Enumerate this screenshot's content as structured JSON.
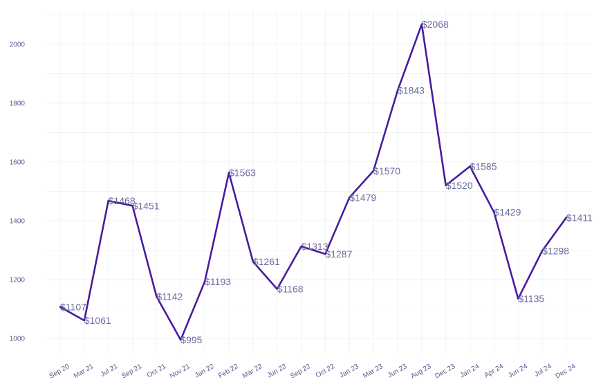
{
  "chart_data": {
    "type": "line",
    "title": "",
    "xlabel": "",
    "ylabel": "",
    "categories": [
      "Sep 20",
      "Mar 21",
      "Jul 21",
      "Sep 21",
      "Oct 21",
      "Nov 21",
      "Jan 22",
      "Feb 22",
      "Mar 22",
      "Jun 22",
      "Sep 22",
      "Oct 22",
      "Jan 23",
      "Mar 23",
      "Jun 23",
      "Aug 23",
      "Dec 23",
      "Jan 24",
      "Apr 24",
      "Jun 24",
      "Jul 24",
      "Dec 24"
    ],
    "values": [
      1107,
      1061,
      1468,
      1451,
      1142,
      995,
      1193,
      1563,
      1261,
      1168,
      1313,
      1287,
      1479,
      1570,
      1843,
      2068,
      1520,
      1585,
      1429,
      1135,
      1298,
      1411
    ],
    "data_labels": [
      "$1107",
      "$1061",
      "$1468",
      "$1451",
      "$1142",
      "$995",
      "$1193",
      "$1563",
      "$1261",
      "$1168",
      "$1313",
      "$1287",
      "$1479",
      "$1570",
      "$1843",
      "$2068",
      "$1520",
      "$1585",
      "$1429",
      "$1135",
      "$1298",
      "$1411"
    ],
    "yticks": [
      1000,
      1200,
      1400,
      1600,
      1800,
      2000
    ],
    "ylim": [
      960,
      2110
    ],
    "grid": true,
    "legend": "none",
    "line_color": "#4a1a9e"
  }
}
